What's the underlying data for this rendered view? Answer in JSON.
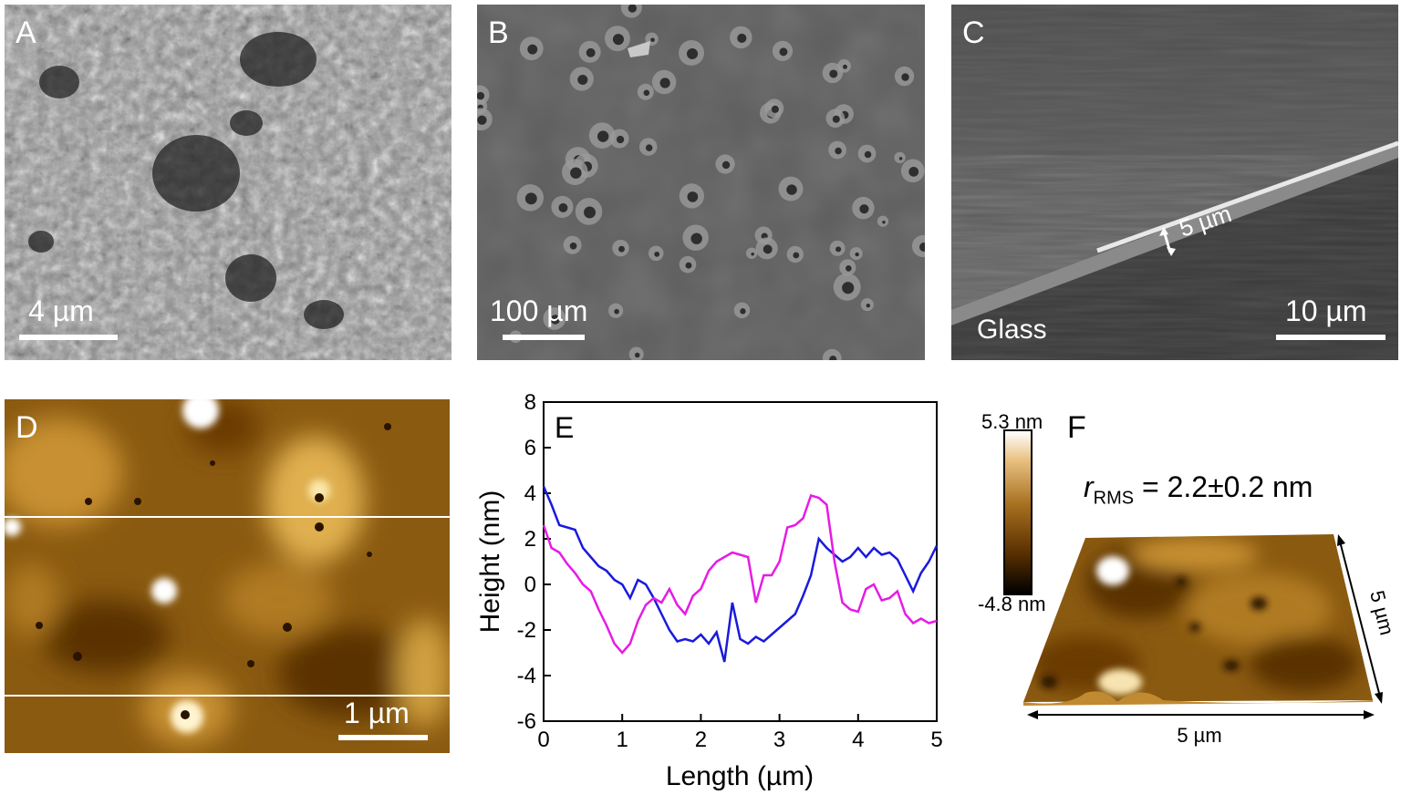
{
  "panels": {
    "A": {
      "label": "A",
      "scale_bar": "4 µm"
    },
    "B": {
      "label": "B",
      "scale_bar": "100 µm"
    },
    "C": {
      "label": "C",
      "scale_bar": "10 µm",
      "substrate": "Glass",
      "thickness": "5 µm"
    },
    "D": {
      "label": "D",
      "scale_bar": "1 µm"
    },
    "E": {
      "label": "E"
    },
    "F": {
      "label": "F",
      "colorbar_max": "5.3 nm",
      "colorbar_min": "-4.8 nm",
      "r_symbol": "r",
      "r_subscript": "RMS",
      "r_value": " = 2.2±0.2 nm",
      "x_extent": "5 µm",
      "y_extent": "5 µm"
    }
  },
  "colors": {
    "sem_gray": "#6e6e6e",
    "afm_brown": "#8a5a10",
    "profile_blue": "#1a1adc",
    "profile_magenta": "#e61be6"
  },
  "chart_data": {
    "type": "line",
    "xlabel": "Length (µm)",
    "ylabel": "Height (nm)",
    "xlim": [
      0,
      5
    ],
    "ylim": [
      -6,
      8
    ],
    "x_ticks": [
      "0",
      "1",
      "2",
      "3",
      "4",
      "5"
    ],
    "y_ticks": [
      "-6",
      "-4",
      "-2",
      "0",
      "2",
      "4",
      "6",
      "8"
    ],
    "series": [
      {
        "color": "#1a1adc",
        "x": [
          0,
          0.1,
          0.2,
          0.3,
          0.4,
          0.5,
          0.6,
          0.7,
          0.8,
          0.9,
          1.0,
          1.1,
          1.2,
          1.3,
          1.4,
          1.5,
          1.6,
          1.7,
          1.8,
          1.9,
          2.0,
          2.1,
          2.2,
          2.3,
          2.4,
          2.5,
          2.6,
          2.7,
          2.8,
          2.9,
          3.0,
          3.1,
          3.2,
          3.3,
          3.4,
          3.5,
          3.6,
          3.7,
          3.8,
          3.9,
          4.0,
          4.1,
          4.2,
          4.3,
          4.4,
          4.5,
          4.6,
          4.7,
          4.8,
          4.9,
          5.0
        ],
        "y": [
          4.3,
          3.5,
          2.6,
          2.5,
          2.4,
          1.6,
          1.2,
          0.8,
          0.6,
          0.2,
          0.0,
          -0.6,
          0.2,
          0.0,
          -0.6,
          -1.3,
          -2.0,
          -2.5,
          -2.4,
          -2.5,
          -2.2,
          -2.6,
          -2.1,
          -3.4,
          -0.8,
          -2.4,
          -2.6,
          -2.3,
          -2.5,
          -2.2,
          -1.9,
          -1.6,
          -1.3,
          -0.5,
          0.4,
          2.0,
          1.6,
          1.3,
          1.0,
          1.2,
          1.6,
          1.2,
          1.6,
          1.3,
          1.4,
          1.1,
          0.4,
          -0.3,
          0.5,
          1.0,
          1.7
        ]
      },
      {
        "color": "#e61be6",
        "x": [
          0,
          0.1,
          0.2,
          0.3,
          0.4,
          0.5,
          0.6,
          0.7,
          0.8,
          0.9,
          1.0,
          1.1,
          1.2,
          1.3,
          1.4,
          1.5,
          1.6,
          1.7,
          1.8,
          1.9,
          2.0,
          2.1,
          2.2,
          2.3,
          2.4,
          2.5,
          2.6,
          2.7,
          2.8,
          2.9,
          3.0,
          3.1,
          3.2,
          3.3,
          3.4,
          3.5,
          3.6,
          3.7,
          3.8,
          3.9,
          4.0,
          4.1,
          4.2,
          4.3,
          4.4,
          4.5,
          4.6,
          4.7,
          4.8,
          4.9,
          5.0
        ],
        "y": [
          2.6,
          1.6,
          1.4,
          0.9,
          0.5,
          0.0,
          -0.3,
          -1.1,
          -1.8,
          -2.6,
          -3.0,
          -2.6,
          -1.6,
          -0.9,
          -0.6,
          -0.8,
          -0.2,
          -0.9,
          -1.3,
          -0.5,
          -0.2,
          0.6,
          1.0,
          1.2,
          1.4,
          1.3,
          1.2,
          -0.8,
          0.4,
          0.4,
          1.0,
          2.5,
          2.6,
          2.9,
          3.9,
          3.8,
          3.5,
          1.0,
          -0.8,
          -1.1,
          -1.2,
          -0.2,
          0.0,
          -0.7,
          -0.6,
          -0.3,
          -1.3,
          -1.7,
          -1.5,
          -1.7,
          -1.6
        ]
      }
    ]
  }
}
